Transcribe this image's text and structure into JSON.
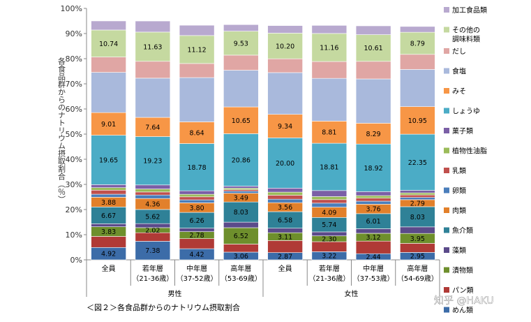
{
  "chart_data": {
    "type": "bar",
    "stacked": true,
    "ylabel": "各食品群からのナトリウム摂取割合（％）",
    "ylim": [
      0,
      100
    ],
    "yticks": [
      "0%",
      "10%",
      "20%",
      "30%",
      "40%",
      "50%",
      "60%",
      "70%",
      "80%",
      "90%",
      "100%"
    ],
    "caption": "＜図２＞各食品群からのナトリウム摂取割合",
    "watermark": "知乎 @HAKU",
    "groups": [
      {
        "label": "男性",
        "span": [
          0,
          3
        ]
      },
      {
        "label": "女性",
        "span": [
          4,
          7
        ]
      }
    ],
    "categories": [
      {
        "label": "全員",
        "sub": ""
      },
      {
        "label": "若年層",
        "sub": "（21-36歳）"
      },
      {
        "label": "中年層",
        "sub": "（37-52歳）"
      },
      {
        "label": "高年層",
        "sub": "（53-69歳）"
      },
      {
        "label": "全員",
        "sub": ""
      },
      {
        "label": "若年層",
        "sub": "（21-36歳）"
      },
      {
        "label": "中年層",
        "sub": "（37-53歳）"
      },
      {
        "label": "高年層",
        "sub": "（54-69歳）"
      }
    ],
    "series": [
      {
        "name": "めん類",
        "color": "#3c6ca8",
        "values": [
          4.92,
          7.38,
          4.42,
          3.06,
          2.87,
          3.22,
          2.44,
          2.95
        ],
        "labels": [
          "4.92",
          "7.38",
          "4.42",
          "3.06",
          "2.87",
          "3.22",
          "2.44",
          "2.95"
        ]
      },
      {
        "name": "パン類",
        "color": "#b03a36",
        "values": [
          4.4,
          3.4,
          4.0,
          3.2,
          4.8,
          4.0,
          5.0,
          3.6
        ],
        "labels": [
          "",
          "",
          "",
          "",
          "",
          "",
          "",
          ""
        ]
      },
      {
        "name": "漬物類",
        "color": "#6e8f2c",
        "values": [
          3.83,
          2.02,
          2.78,
          6.52,
          3.11,
          2.3,
          3.12,
          3.95
        ],
        "labels": [
          "3.83",
          "2.02",
          "2.78",
          "6.52",
          "3.11",
          "2.30",
          "3.12",
          "3.95"
        ]
      },
      {
        "name": "藻類",
        "color": "#5b4a8a",
        "values": [
          1.2,
          1.6,
          1.4,
          2.2,
          1.8,
          1.6,
          1.8,
          2.6
        ],
        "labels": [
          "",
          "",
          "",
          "",
          "",
          "",
          "",
          ""
        ]
      },
      {
        "name": "魚介類",
        "color": "#2f8197",
        "values": [
          6.67,
          5.62,
          6.26,
          8.03,
          6.58,
          5.74,
          6.01,
          8.03
        ],
        "labels": [
          "6.67",
          "5.62",
          "6.26",
          "8.03",
          "6.58",
          "5.74",
          "6.01",
          "8.03"
        ]
      },
      {
        "name": "肉類",
        "color": "#e2802b",
        "values": [
          3.88,
          4.36,
          3.8,
          3.49,
          3.56,
          4.09,
          3.76,
          2.79
        ],
        "labels": [
          "3.88",
          "4.36",
          "3.80",
          "3.49",
          "3.56",
          "4.09",
          "3.76",
          "2.79"
        ]
      },
      {
        "name": "卵類",
        "color": "#4a7ebb",
        "values": [
          1.2,
          1.4,
          1.2,
          0.8,
          1.4,
          1.6,
          1.2,
          0.9
        ],
        "labels": [
          "",
          "",
          "",
          "",
          "",
          "",
          "",
          ""
        ]
      },
      {
        "name": "乳類",
        "color": "#c0504d",
        "values": [
          1.6,
          1.2,
          1.2,
          0.6,
          1.6,
          1.4,
          1.2,
          1.0
        ],
        "labels": [
          "",
          "",
          "",
          "",
          "",
          "",
          "",
          ""
        ]
      },
      {
        "name": "植物性油脂",
        "color": "#9bbb59",
        "values": [
          1.0,
          1.2,
          1.0,
          0.6,
          1.2,
          1.2,
          1.0,
          0.8
        ],
        "labels": [
          "",
          "",
          "",
          "",
          "",
          "",
          "",
          ""
        ]
      },
      {
        "name": "菓子類",
        "color": "#7b5fa6",
        "values": [
          1.2,
          1.6,
          1.4,
          0.8,
          1.6,
          2.4,
          1.6,
          1.0
        ],
        "labels": [
          "",
          "",
          "",
          "",
          "",
          "",
          "",
          ""
        ]
      },
      {
        "name": "しょうゆ",
        "color": "#4bacc6",
        "values": [
          19.65,
          19.23,
          18.78,
          20.86,
          20.0,
          18.81,
          18.92,
          22.35
        ],
        "labels": [
          "19.65",
          "19.23",
          "18.78",
          "20.86",
          "20.00",
          "18.81",
          "18.92",
          "22.35"
        ]
      },
      {
        "name": "みそ",
        "color": "#f79646",
        "values": [
          9.01,
          7.64,
          8.64,
          10.65,
          9.34,
          8.81,
          8.29,
          10.95
        ],
        "labels": [
          "9.01",
          "7.64",
          "8.64",
          "10.65",
          "9.34",
          "8.81",
          "8.29",
          "10.95"
        ]
      },
      {
        "name": "食塩",
        "color": "#a9b9dc",
        "values": [
          16.0,
          15.6,
          17.6,
          14.6,
          16.6,
          17.0,
          17.6,
          14.8
        ],
        "labels": [
          "",
          "",
          "",
          "",
          "",
          "",
          "",
          ""
        ]
      },
      {
        "name": "だし",
        "color": "#e0a6a4",
        "values": [
          6.1,
          6.7,
          5.6,
          6.0,
          5.5,
          6.7,
          7.0,
          6.0
        ],
        "labels": [
          "",
          "",
          "",
          "",
          "",
          "",
          "",
          ""
        ]
      },
      {
        "name": "その他の調味料類",
        "color": "#c5d9a0",
        "values": [
          10.74,
          11.63,
          11.12,
          9.53,
          10.2,
          11.16,
          10.61,
          8.79
        ],
        "labels": [
          "10.74",
          "11.63",
          "11.12",
          "9.53",
          "10.20",
          "11.16",
          "10.61",
          "8.79"
        ]
      },
      {
        "name": "加工食品類",
        "color": "#b8a9cf",
        "values": [
          3.6,
          4.4,
          4.1,
          2.6,
          3.0,
          3.2,
          3.5,
          2.3
        ],
        "labels": [
          "",
          "",
          "",
          "",
          "",
          "",
          "",
          ""
        ]
      }
    ],
    "legend": [
      {
        "text": "加工食品類",
        "series": 15
      },
      {
        "text": "その他の",
        "text2": "調味料類",
        "series": 14
      },
      {
        "text": "だし",
        "series": 13
      },
      {
        "text": "食塩",
        "series": 12
      },
      {
        "text": "みそ",
        "series": 11
      },
      {
        "text": "しょうゆ",
        "series": 10
      },
      {
        "text": "菓子類",
        "series": 9
      },
      {
        "text": "植物性油脂",
        "series": 8
      },
      {
        "text": "乳類",
        "series": 7
      },
      {
        "text": "卵類",
        "series": 6
      },
      {
        "text": "肉類",
        "series": 5
      },
      {
        "text": "魚介類",
        "series": 4
      },
      {
        "text": "藻類",
        "series": 3
      },
      {
        "text": "漬物類",
        "series": 2
      },
      {
        "text": "パン類",
        "series": 1
      },
      {
        "text": "めん類",
        "series": 0
      }
    ],
    "legend_position": "right",
    "grid": false
  }
}
